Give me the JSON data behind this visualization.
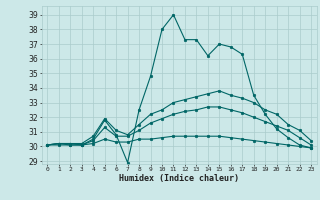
{
  "xlabel": "Humidex (Indice chaleur)",
  "xlim": [
    -0.5,
    23.5
  ],
  "ylim": [
    28.8,
    39.6
  ],
  "yticks": [
    29,
    30,
    31,
    32,
    33,
    34,
    35,
    36,
    37,
    38,
    39
  ],
  "xticks": [
    0,
    1,
    2,
    3,
    4,
    5,
    6,
    7,
    8,
    9,
    10,
    11,
    12,
    13,
    14,
    15,
    16,
    17,
    18,
    19,
    20,
    21,
    22,
    23
  ],
  "background_color": "#cce8e8",
  "grid_color": "#aacccc",
  "line_color": "#006666",
  "lines": [
    {
      "x": [
        0,
        1,
        2,
        3,
        4,
        5,
        6,
        7,
        8,
        9,
        10,
        11,
        12,
        13,
        14,
        15,
        16,
        17,
        18,
        19,
        20,
        21,
        22,
        23
      ],
      "y": [
        30.1,
        30.2,
        30.2,
        30.1,
        30.5,
        31.8,
        30.8,
        28.9,
        32.5,
        34.8,
        38.0,
        39.0,
        37.3,
        37.3,
        36.2,
        37.0,
        36.8,
        36.3,
        33.5,
        32.2,
        31.2,
        30.6,
        30.1,
        29.9
      ]
    },
    {
      "x": [
        0,
        1,
        2,
        3,
        4,
        5,
        6,
        7,
        8,
        9,
        10,
        11,
        12,
        13,
        14,
        15,
        16,
        17,
        18,
        19,
        20,
        21,
        22,
        23
      ],
      "y": [
        30.1,
        30.2,
        30.2,
        30.2,
        30.7,
        31.9,
        31.1,
        30.8,
        31.5,
        32.2,
        32.5,
        33.0,
        33.2,
        33.4,
        33.6,
        33.8,
        33.5,
        33.3,
        33.0,
        32.5,
        32.2,
        31.5,
        31.1,
        30.4
      ]
    },
    {
      "x": [
        0,
        1,
        2,
        3,
        4,
        5,
        6,
        7,
        8,
        9,
        10,
        11,
        12,
        13,
        14,
        15,
        16,
        17,
        18,
        19,
        20,
        21,
        22,
        23
      ],
      "y": [
        30.1,
        30.2,
        30.1,
        30.1,
        30.4,
        31.3,
        30.7,
        30.7,
        31.1,
        31.6,
        31.9,
        32.2,
        32.4,
        32.5,
        32.7,
        32.7,
        32.5,
        32.3,
        32.0,
        31.7,
        31.4,
        31.1,
        30.6,
        30.1
      ]
    },
    {
      "x": [
        0,
        1,
        2,
        3,
        4,
        5,
        6,
        7,
        8,
        9,
        10,
        11,
        12,
        13,
        14,
        15,
        16,
        17,
        18,
        19,
        20,
        21,
        22,
        23
      ],
      "y": [
        30.1,
        30.1,
        30.1,
        30.1,
        30.2,
        30.5,
        30.3,
        30.3,
        30.5,
        30.5,
        30.6,
        30.7,
        30.7,
        30.7,
        30.7,
        30.7,
        30.6,
        30.5,
        30.4,
        30.3,
        30.2,
        30.1,
        30.0,
        29.9
      ]
    }
  ]
}
